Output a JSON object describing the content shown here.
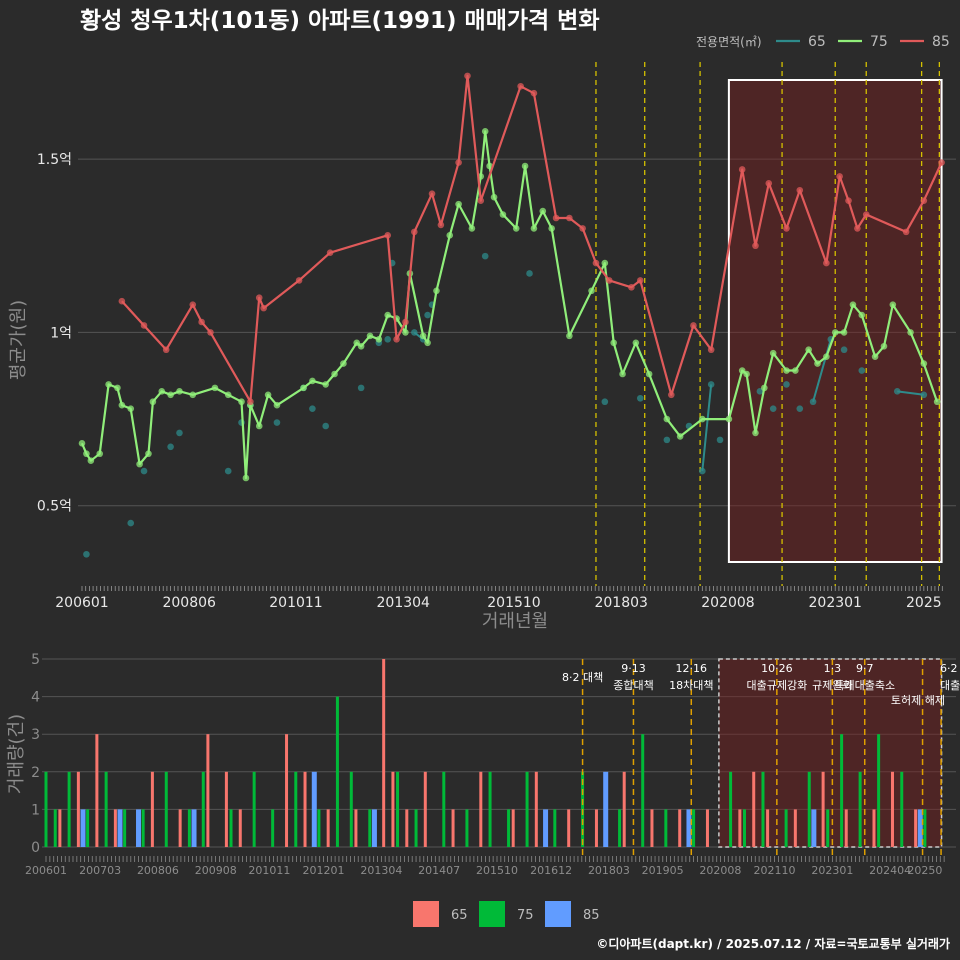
{
  "chart_data": [
    {
      "type": "line",
      "title": "황성 청우1차(101동) 아파트(1991) 매매가격 변화",
      "xlabel": "거래년월",
      "ylabel": "평균가(원)",
      "x_range": [
        2006.0,
        2025.5
      ],
      "ylim": [
        0.28,
        1.78
      ],
      "yticks": [
        {
          "v": 0.5,
          "label": "0.5억"
        },
        {
          "v": 1.0,
          "label": "1억"
        },
        {
          "v": 1.5,
          "label": "1.5억"
        }
      ],
      "xticks": [
        {
          "v": 2006.0,
          "label": "200601"
        },
        {
          "v": 2008.42,
          "label": "200806"
        },
        {
          "v": 2010.83,
          "label": "201011"
        },
        {
          "v": 2013.25,
          "label": "201304"
        },
        {
          "v": 2015.75,
          "label": "201510"
        },
        {
          "v": 2018.17,
          "label": "201803"
        },
        {
          "v": 2020.58,
          "label": "202008"
        },
        {
          "v": 2023.0,
          "label": "202301"
        },
        {
          "v": 2025.0,
          "label": "2025"
        }
      ],
      "legend_title": "전용면적(㎡)",
      "highlight_range": [
        2020.6,
        2025.4
      ],
      "policy_lines": [
        2017.6,
        2018.7,
        2019.95,
        2021.8,
        2023.0,
        2023.7,
        2024.95,
        2025.35
      ],
      "series": [
        {
          "name": "65",
          "color": "#2e8b8b",
          "x": [
            2006.1,
            2007.1,
            2007.4,
            2008.0,
            2008.2,
            2009.3,
            2009.6,
            2009.8,
            2010.4,
            2011.0,
            2011.2,
            2011.5,
            2012.3,
            2012.7,
            2012.9,
            2013.0,
            2013.5,
            2013.7,
            2013.8,
            2013.9,
            2015.1,
            2016.1,
            2017.8,
            2018.6,
            2019.2,
            2019.7,
            2020.0,
            2020.2,
            2020.4,
            2021.3,
            2021.6,
            2021.9,
            2022.2,
            2022.5,
            2022.9,
            2023.2,
            2023.6,
            2024.4,
            2025.0
          ],
          "y": [
            0.36,
            0.45,
            0.6,
            0.67,
            0.71,
            0.6,
            0.74,
            0.79,
            0.74,
            0.84,
            0.78,
            0.73,
            0.84,
            0.97,
            0.98,
            1.2,
            1.0,
            0.98,
            1.05,
            1.08,
            1.22,
            1.17,
            0.8,
            0.81,
            0.69,
            0.73,
            0.6,
            0.85,
            0.69,
            0.83,
            0.78,
            0.85,
            0.78,
            0.8,
            0.98,
            0.95,
            0.89,
            0.83,
            0.82
          ]
        },
        {
          "name": "75",
          "color": "#90ee7a",
          "x": [
            2006.0,
            2006.1,
            2006.2,
            2006.4,
            2006.6,
            2006.8,
            2006.9,
            2007.1,
            2007.3,
            2007.5,
            2007.6,
            2007.8,
            2008.0,
            2008.2,
            2008.5,
            2009.0,
            2009.3,
            2009.6,
            2009.7,
            2009.8,
            2010.0,
            2010.2,
            2010.4,
            2011.0,
            2011.2,
            2011.5,
            2011.7,
            2011.9,
            2012.2,
            2012.3,
            2012.5,
            2012.7,
            2012.9,
            2013.1,
            2013.3,
            2013.4,
            2013.7,
            2013.8,
            2014.0,
            2014.3,
            2014.5,
            2014.8,
            2015.0,
            2015.1,
            2015.2,
            2015.3,
            2015.5,
            2015.8,
            2016.0,
            2016.2,
            2016.4,
            2016.6,
            2017.0,
            2017.5,
            2017.8,
            2018.0,
            2018.2,
            2018.5,
            2018.8,
            2019.2,
            2019.5,
            2020.0,
            2020.6,
            2020.9,
            2021.0,
            2021.2,
            2021.4,
            2021.6,
            2021.9,
            2022.1,
            2022.4,
            2022.6,
            2022.8,
            2023.0,
            2023.2,
            2023.4,
            2023.6,
            2023.9,
            2024.1,
            2024.3,
            2024.7,
            2025.0,
            2025.3
          ],
          "y": [
            0.68,
            0.65,
            0.63,
            0.65,
            0.85,
            0.84,
            0.79,
            0.78,
            0.62,
            0.65,
            0.8,
            0.83,
            0.82,
            0.83,
            0.82,
            0.84,
            0.82,
            0.8,
            0.58,
            0.79,
            0.73,
            0.82,
            0.79,
            0.84,
            0.86,
            0.85,
            0.88,
            0.91,
            0.97,
            0.96,
            0.99,
            0.98,
            1.05,
            1.04,
            1.0,
            1.17,
            0.99,
            0.97,
            1.12,
            1.28,
            1.37,
            1.3,
            1.45,
            1.58,
            1.48,
            1.39,
            1.34,
            1.3,
            1.48,
            1.3,
            1.35,
            1.3,
            0.99,
            1.12,
            1.2,
            0.97,
            0.88,
            0.97,
            0.88,
            0.75,
            0.7,
            0.75,
            0.75,
            0.89,
            0.88,
            0.71,
            0.84,
            0.94,
            0.89,
            0.89,
            0.95,
            0.91,
            0.93,
            1.0,
            1.0,
            1.08,
            1.05,
            0.93,
            0.96,
            1.08,
            1.0,
            0.91,
            0.8
          ]
        },
        {
          "name": "85",
          "color": "#e05a5a",
          "x": [
            2006.9,
            2007.4,
            2007.9,
            2008.5,
            2008.7,
            2008.9,
            2009.8,
            2010.0,
            2010.1,
            2010.9,
            2011.6,
            2012.9,
            2013.1,
            2013.3,
            2013.5,
            2013.9,
            2014.1,
            2014.5,
            2014.7,
            2015.0,
            2015.9,
            2016.2,
            2016.7,
            2017.0,
            2017.3,
            2017.6,
            2017.9,
            2018.4,
            2018.6,
            2019.3,
            2019.8,
            2020.2,
            2020.9,
            2021.2,
            2021.5,
            2021.9,
            2022.2,
            2022.8,
            2023.1,
            2023.3,
            2023.5,
            2023.7,
            2024.6,
            2025.0,
            2025.4
          ],
          "y": [
            1.09,
            1.02,
            0.95,
            1.08,
            1.03,
            1.0,
            0.8,
            1.1,
            1.07,
            1.15,
            1.23,
            1.28,
            0.98,
            1.03,
            1.29,
            1.4,
            1.31,
            1.49,
            1.74,
            1.38,
            1.71,
            1.69,
            1.33,
            1.33,
            1.3,
            1.2,
            1.15,
            1.13,
            1.15,
            0.82,
            1.02,
            0.95,
            1.47,
            1.25,
            1.43,
            1.3,
            1.41,
            1.2,
            1.45,
            1.38,
            1.3,
            1.34,
            1.29,
            1.38,
            1.49
          ]
        }
      ]
    },
    {
      "type": "bar",
      "ylabel": "거래량(건)",
      "ylim": [
        0,
        5
      ],
      "yticks": [
        0,
        1,
        2,
        3,
        4,
        5
      ],
      "xticks": [
        {
          "v": 2006.0,
          "label": "200601"
        },
        {
          "v": 2007.17,
          "label": "200703"
        },
        {
          "v": 2008.42,
          "label": "200806"
        },
        {
          "v": 2009.67,
          "label": "200908"
        },
        {
          "v": 2010.83,
          "label": "201011"
        },
        {
          "v": 2012.0,
          "label": "201201"
        },
        {
          "v": 2013.25,
          "label": "201304"
        },
        {
          "v": 2014.5,
          "label": "201407"
        },
        {
          "v": 2015.75,
          "label": "201510"
        },
        {
          "v": 2016.92,
          "label": "201612"
        },
        {
          "v": 2018.17,
          "label": "201803"
        },
        {
          "v": 2019.33,
          "label": "201905"
        },
        {
          "v": 2020.58,
          "label": "202008"
        },
        {
          "v": 2021.75,
          "label": "202110"
        },
        {
          "v": 2023.0,
          "label": "202301"
        },
        {
          "v": 2024.25,
          "label": "202404"
        },
        {
          "v": 2025.0,
          "label": "20250"
        }
      ],
      "legend": [
        {
          "name": "65",
          "color": "#f8766d"
        },
        {
          "name": "75",
          "color": "#00ba38"
        },
        {
          "name": "85",
          "color": "#619cff"
        }
      ],
      "highlight_range": [
        2020.6,
        2025.4
      ],
      "policy_lines": [
        2017.6,
        2018.7,
        2019.95,
        2021.8,
        2023.0,
        2023.7,
        2024.95,
        2025.35
      ],
      "annotations": [
        {
          "x": 2017.6,
          "lines": [
            "8·2 대책"
          ]
        },
        {
          "x": 2018.7,
          "lines": [
            "9·13",
            "종합대책"
          ]
        },
        {
          "x": 2019.95,
          "lines": [
            "12·16",
            "18차대책"
          ]
        },
        {
          "x": 2021.8,
          "lines": [
            "10·26",
            "대출규제강화"
          ]
        },
        {
          "x": 2023.0,
          "lines": [
            "1·3",
            "규제완화"
          ]
        },
        {
          "x": 2023.7,
          "lines": [
            "9·7",
            "특례대출축소"
          ]
        },
        {
          "x": 2024.85,
          "lines": [
            "토허제 해제"
          ]
        },
        {
          "x": 2025.35,
          "lines": [
            "6·2",
            "대출"
          ]
        }
      ],
      "series": [
        {
          "name": "65",
          "color": "#f8766d",
          "x": [
            2006.3,
            2006.7,
            2007.1,
            2007.5,
            2008.3,
            2008.9,
            2009.5,
            2009.9,
            2010.2,
            2011.2,
            2011.6,
            2012.1,
            2012.7,
            2013.3,
            2013.5,
            2013.8,
            2014.2,
            2014.8,
            2015.4,
            2016.1,
            2016.6,
            2017.3,
            2017.9,
            2018.5,
            2019.1,
            2019.7,
            2020.3,
            2021.0,
            2021.3,
            2021.6,
            2022.2,
            2022.8,
            2023.3,
            2023.9,
            2024.3,
            2024.8
          ],
          "y": [
            1,
            2,
            3,
            1,
            2,
            1,
            3,
            2,
            1,
            3,
            2,
            1,
            1,
            5,
            2,
            1,
            2,
            1,
            2,
            1,
            2,
            1,
            1,
            2,
            1,
            1,
            1,
            1,
            2,
            1,
            1,
            2,
            1,
            1,
            2,
            1
          ]
        },
        {
          "name": "75",
          "color": "#00ba38",
          "x": [
            2006.0,
            2006.2,
            2006.5,
            2006.9,
            2007.3,
            2007.7,
            2008.1,
            2008.6,
            2009.1,
            2009.4,
            2010.0,
            2010.5,
            2010.9,
            2011.4,
            2011.9,
            2012.3,
            2012.6,
            2013.0,
            2013.6,
            2014.0,
            2014.6,
            2015.1,
            2015.6,
            2016.0,
            2016.4,
            2017.0,
            2017.6,
            2018.4,
            2018.9,
            2019.4,
            2020.0,
            2020.8,
            2021.1,
            2021.5,
            2022.0,
            2022.5,
            2022.9,
            2023.2,
            2023.6,
            2024.0,
            2024.5,
            2025.0
          ],
          "y": [
            2,
            1,
            2,
            1,
            2,
            1,
            1,
            2,
            1,
            2,
            1,
            2,
            1,
            2,
            1,
            4,
            2,
            1,
            2,
            1,
            2,
            1,
            2,
            1,
            2,
            1,
            2,
            1,
            3,
            1,
            1,
            2,
            1,
            2,
            1,
            2,
            1,
            3,
            2,
            3,
            2,
            1
          ]
        },
        {
          "name": "85",
          "color": "#619cff",
          "x": [
            2006.8,
            2007.6,
            2008.0,
            2009.2,
            2011.8,
            2013.1,
            2016.8,
            2018.1,
            2019.9,
            2022.6,
            2024.9
          ],
          "y": [
            1,
            1,
            1,
            1,
            2,
            1,
            1,
            2,
            1,
            1,
            1
          ]
        }
      ]
    }
  ],
  "footer": "©디아파트(dapt.kr) / 2025.07.12 / 자료=국토교통부 실거래가"
}
